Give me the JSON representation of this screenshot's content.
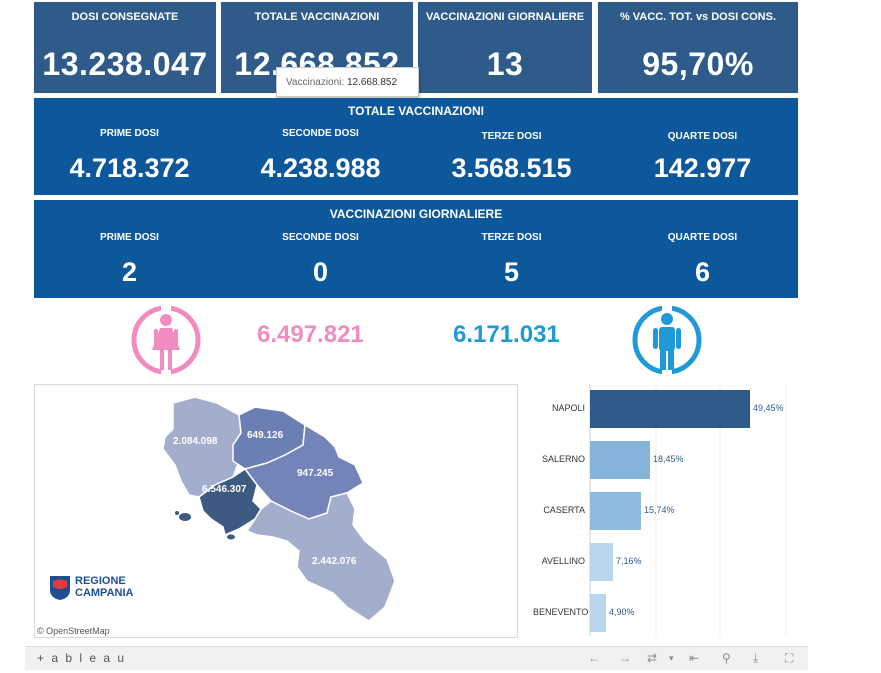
{
  "top_cards": [
    {
      "label": "DOSI CONSEGNATE",
      "value": "13.238.047"
    },
    {
      "label": "TOTALE VACCINAZIONI",
      "value": "12.668.852"
    },
    {
      "label": "VACCINAZIONI GIORNALIERE",
      "value": "13"
    },
    {
      "label": "% VACC. TOT. vs DOSI CONS.",
      "value": "95,70%"
    }
  ],
  "tooltip": {
    "label": "Vaccinazioni:",
    "value": "12.668.852"
  },
  "totals": {
    "title": "TOTALE VACCINAZIONI",
    "cols": [
      {
        "label": "PRIME DOSI",
        "value": "4.718.372"
      },
      {
        "label": "SECONDE DOSI",
        "value": "4.238.988"
      },
      {
        "label": "TERZE DOSI",
        "value": "3.568.515"
      },
      {
        "label": "QUARTE DOSI",
        "value": "142.977"
      }
    ]
  },
  "daily": {
    "title": "VACCINAZIONI GIORNALIERE",
    "cols": [
      {
        "label": "PRIME DOSI",
        "value": "2"
      },
      {
        "label": "SECONDE DOSI",
        "value": "0"
      },
      {
        "label": "TERZE DOSI",
        "value": "5"
      },
      {
        "label": "QUARTE DOSI",
        "value": "6"
      }
    ]
  },
  "gender": {
    "female": "6.497.821",
    "male": "6.171.031",
    "female_color": "#f08cc0",
    "male_color": "#1f9ad6"
  },
  "map": {
    "regions": [
      "2.084.098",
      "649.126",
      "947.245",
      "6.546.307",
      "2.442.076"
    ],
    "logo_line1": "REGIONE",
    "logo_line2": "CAMPANIA",
    "attribution": "© OpenStreetMap"
  },
  "chart_data": {
    "type": "bar",
    "orientation": "horizontal",
    "categories": [
      "NAPOLI",
      "SALERNO",
      "CASERTA",
      "AVELLINO",
      "BENEVENTO"
    ],
    "values": [
      49.45,
      18.45,
      15.74,
      7.16,
      4.9
    ],
    "labels": [
      "49,45%",
      "18,45%",
      "15,74%",
      "7,16%",
      "4,90%"
    ],
    "colors": [
      "#2f5b8a",
      "#86b3d9",
      "#8fbbdf",
      "#b6d7ef",
      "#b6d7ef"
    ]
  },
  "footer": {
    "brand": "+ a b l e a u"
  }
}
